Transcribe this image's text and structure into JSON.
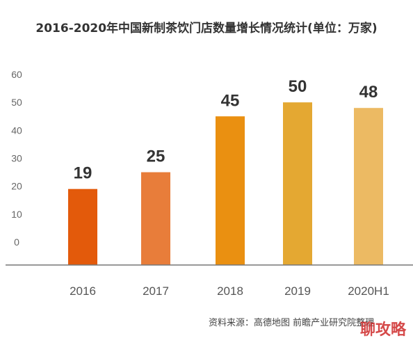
{
  "chart_data": {
    "type": "bar",
    "title": "2016-2020年中国新制茶饮门店数量增长情况统计(单位：万家)",
    "categories": [
      "2016",
      "2017",
      "2018",
      "2019",
      "2020H1"
    ],
    "values": [
      19,
      25,
      45,
      50,
      48
    ],
    "data_labels": [
      "19",
      "25",
      "45",
      "50",
      "48"
    ],
    "bar_colors": [
      "#e35a0b",
      "#e87d3a",
      "#ea9011",
      "#e4a832",
      "#ecba63"
    ],
    "yticks": [
      "0",
      "10",
      "20",
      "30",
      "40",
      "50",
      "60"
    ],
    "ylim": [
      0,
      60
    ],
    "grid": false,
    "legend": "none"
  },
  "source_text": "资料来源：高德地图 前瞻产业研究院整理",
  "watermark_text": "聊攻略"
}
